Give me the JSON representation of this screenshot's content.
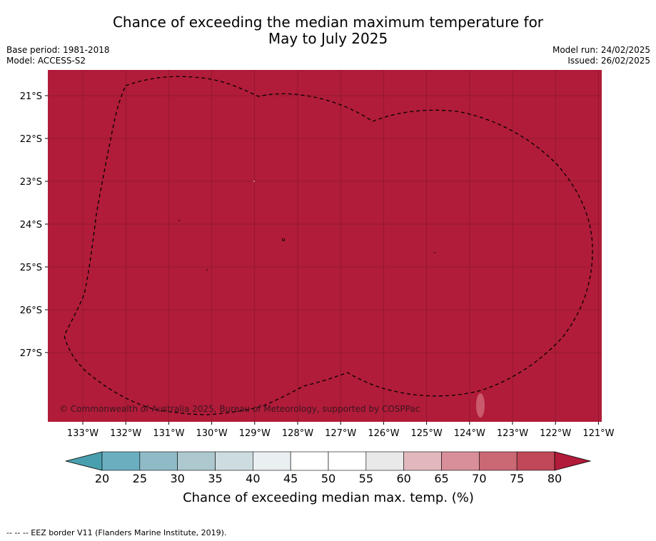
{
  "title_line1": "Chance of exceeding the median maximum temperature for",
  "title_line2": "May to July 2025",
  "base_period": "Base period: 1981-2018",
  "model": "Model: ACCESS-S2",
  "model_run": "Model run: 24/02/2025",
  "issued": "Issued: 26/02/2025",
  "credit": "© Commonwealth of Australia 2025, Bureau of Meteorology, supported by COSPPac",
  "footnote": "--  --  -- EEZ border V11 (Flanders Marine Institute, 2019).",
  "map": {
    "fill_color": "#b01c39",
    "lat_labels": [
      "21°S",
      "22°S",
      "23°S",
      "24°S",
      "25°S",
      "26°S",
      "27°S"
    ],
    "lon_labels": [
      "133°W",
      "132°W",
      "131°W",
      "130°W",
      "129°W",
      "128°W",
      "127°W",
      "126°W",
      "125°W",
      "124°W",
      "123°W",
      "122°W",
      "121°W"
    ]
  },
  "colorbar": {
    "ticks": [
      "20",
      "25",
      "30",
      "35",
      "40",
      "45",
      "50",
      "55",
      "60",
      "65",
      "70",
      "75",
      "80"
    ],
    "label": "Chance of exceeding median max. temp. (%)",
    "under_color": "#4a9fae",
    "over_color": "#b01c39",
    "colors": [
      "#6aaec0",
      "#8fbbc7",
      "#adc8ce",
      "#cddcdf",
      "#eaf0f2",
      "#ffffff",
      "#ffffff",
      "#e9e9e9",
      "#e2b8be",
      "#d88f99",
      "#ca6874",
      "#c04858"
    ]
  }
}
